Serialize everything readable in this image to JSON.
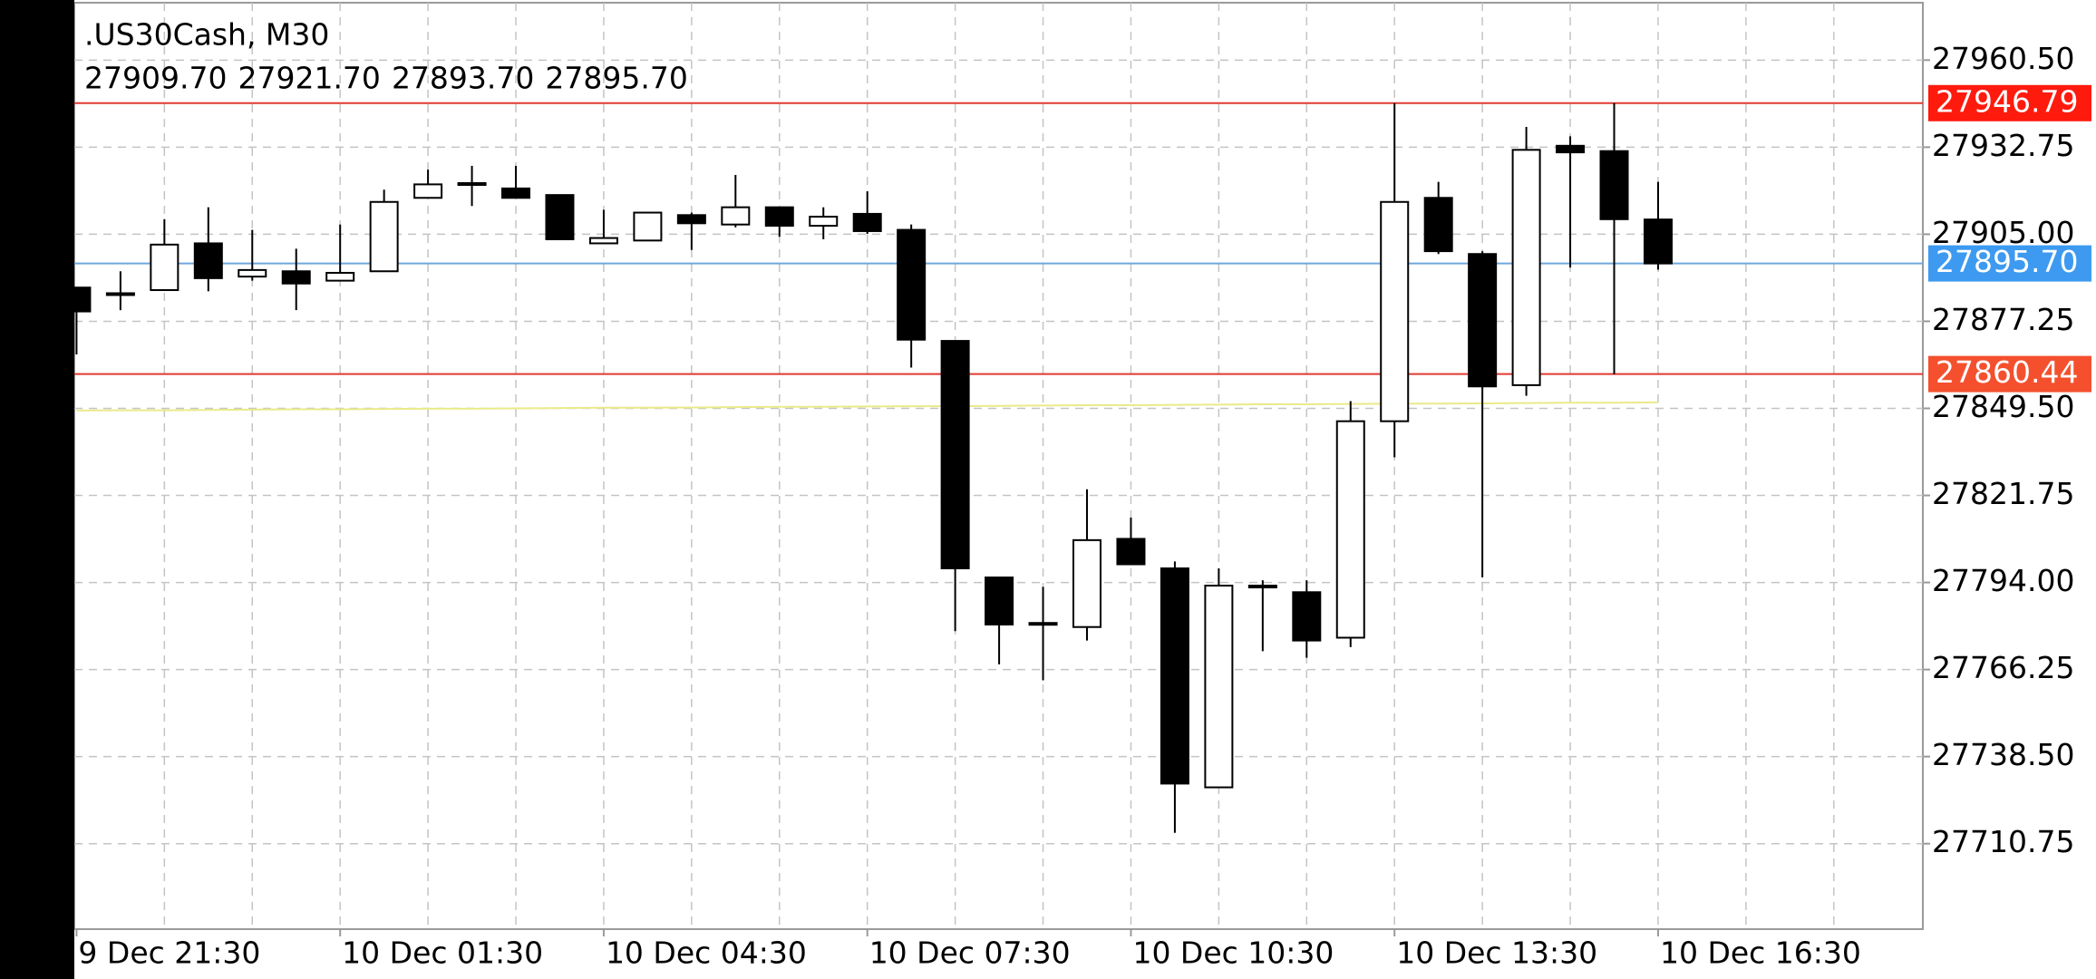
{
  "chart_data": {
    "type": "candlestick",
    "title": ".US30Cash, M30",
    "header_values": [
      "27909.70",
      "27921.70",
      "27893.70",
      "27895.70"
    ],
    "categories": [
      "9 Dec 21:30",
      null,
      null,
      null,
      null,
      null,
      "10 Dec 01:30",
      null,
      null,
      null,
      null,
      null,
      "10 Dec 04:30",
      null,
      null,
      null,
      null,
      null,
      "10 Dec 07:30",
      null,
      null,
      null,
      null,
      null,
      "10 Dec 10:30",
      null,
      null,
      null,
      null,
      null,
      "10 Dec 13:30",
      null,
      null,
      null,
      null,
      null,
      "10 Dec 16:30",
      null,
      null,
      null,
      null,
      null
    ],
    "open": [
      27888.0,
      27885.9,
      27887.2,
      27902.1,
      27891.5,
      27893.2,
      27890.2,
      27893.2,
      27916.6,
      27920.9,
      27919.6,
      27917.5,
      27902.1,
      27903.0,
      27911.1,
      27908.1,
      27913.6,
      27907.7,
      27911.5,
      27906.4,
      27871.0,
      27795.6,
      27780.6,
      27779.8,
      27807.9,
      27798.5,
      27728.7,
      27793.0,
      27790.9,
      27776.4,
      27845.4,
      27916.6,
      27898.7,
      27856.9,
      27933.2,
      27931.5,
      27909.7,
      null,
      null,
      null,
      null,
      null
    ],
    "high": [
      27888.0,
      27893.2,
      27909.8,
      27913.6,
      27906.4,
      27900.4,
      27908.1,
      27919.2,
      27925.6,
      27926.8,
      27926.8,
      27917.5,
      27912.8,
      27911.9,
      27911.9,
      27923.9,
      27913.6,
      27913.6,
      27918.7,
      27908.1,
      27871.0,
      27795.6,
      27792.6,
      27823.7,
      27814.7,
      27800.7,
      27798.5,
      27794.7,
      27794.7,
      27851.8,
      27946.8,
      27921.7,
      27899.6,
      27939.2,
      27936.2,
      27946.8,
      27921.7,
      null,
      null,
      null,
      null,
      null
    ],
    "low": [
      27866.7,
      27880.8,
      27887.2,
      27886.8,
      27890.2,
      27880.8,
      27890.2,
      27893.2,
      27916.6,
      27914.0,
      27916.6,
      27903.4,
      27902.1,
      27903.0,
      27900.0,
      27907.2,
      27904.2,
      27903.4,
      27905.1,
      27862.5,
      27778.5,
      27767.9,
      27762.8,
      27775.5,
      27799.8,
      27714.2,
      27728.7,
      27772.1,
      27770.0,
      27773.4,
      27833.9,
      27898.7,
      27795.6,
      27853.5,
      27894.4,
      27860.4,
      27893.7,
      null,
      null,
      null,
      null,
      null
    ],
    "close": [
      27880.4,
      27886.2,
      27901.7,
      27891.0,
      27893.6,
      27889.3,
      27892.7,
      27915.3,
      27920.9,
      27921.3,
      27916.6,
      27903.4,
      27903.8,
      27911.9,
      27908.5,
      27913.6,
      27907.7,
      27910.6,
      27906.0,
      27871.4,
      27798.5,
      27780.6,
      27781.1,
      27807.5,
      27799.8,
      27729.9,
      27793.0,
      27792.6,
      27775.5,
      27845.4,
      27915.3,
      27899.6,
      27856.5,
      27931.9,
      27931.1,
      27909.8,
      27895.7,
      null,
      null,
      null,
      null,
      null
    ],
    "up_color": "#ffffff",
    "down_color": "#000000",
    "outline_color": "#000000",
    "overlay": {
      "color": "#eaea8a",
      "values": [
        27848.8,
        27848.9,
        27848.9,
        27849.0,
        27849.1,
        27849.2,
        27849.2,
        27849.3,
        27849.4,
        27849.4,
        27849.5,
        27849.6,
        27849.7,
        27849.7,
        27849.8,
        27849.9,
        27850.0,
        27850.0,
        27850.1,
        27850.2,
        27850.2,
        27850.3,
        27850.4,
        27850.5,
        27850.5,
        27850.6,
        27850.7,
        27850.8,
        27850.8,
        27850.9,
        27851.0,
        27851.0,
        27851.1,
        27851.2,
        27851.3,
        27851.3,
        27851.4,
        null,
        null,
        null,
        null,
        null
      ]
    },
    "price_lines": [
      {
        "value": 27946.79,
        "label": "27946.79",
        "color": "#e03a32",
        "box_color": "#ff1a0e"
      },
      {
        "value": 27895.7,
        "label": "27895.70",
        "color": "#6fa8dc",
        "box_color": "#3d9af0"
      },
      {
        "value": 27860.44,
        "label": "27860.44",
        "color": "#e03a32",
        "box_color": "#f4502e"
      }
    ],
    "ylim": [
      27683.5,
      27978.8
    ],
    "yticks": [
      {
        "value": 27960.5,
        "label": "27960.50"
      },
      27932.75,
      {
        "value": 27905,
        "label": "27905.00"
      },
      27877.25,
      {
        "value": 27849.5,
        "label": "27849.50"
      },
      27821.75,
      {
        "value": 27794,
        "label": "27794.00"
      },
      27766.25,
      {
        "value": 27738.5,
        "label": "27738.50"
      },
      27710.75
    ],
    "grid": true
  }
}
